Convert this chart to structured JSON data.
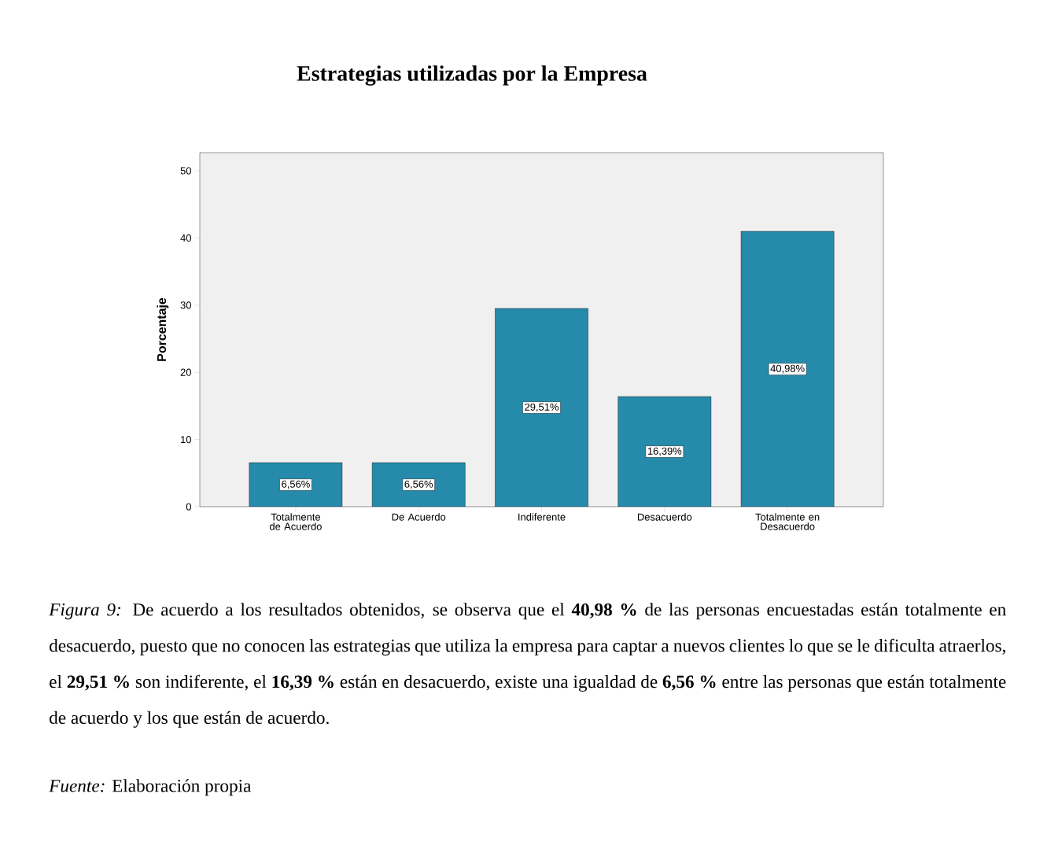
{
  "chart_data": {
    "type": "bar",
    "title": "Estrategias utilizadas por la Empresa",
    "ylabel": "Porcentaje",
    "categories": [
      "Totalmente de Acuerdo",
      "De Acuerdo",
      "Indiferente",
      "Desacuerdo",
      "Totalmente en Desacuerdo"
    ],
    "values": [
      6.56,
      6.56,
      29.51,
      16.39,
      40.98
    ],
    "value_labels": [
      "6,56%",
      "6,56%",
      "29,51%",
      "16,39%",
      "40,98%"
    ],
    "color": "#268aab",
    "ylim": [
      0,
      52.7
    ],
    "yticks": [
      0,
      10,
      20,
      30,
      40,
      50
    ],
    "annotations": [
      "*Figura 9:* De acuerdo a los resultados obtenidos, se observa que el **40,98 %** de las personas encuestadas están totalmente en desacuerdo, puesto que no conocen las estrategias que utiliza la empresa para captar a nuevos clientes lo que se le dificulta atraerlos, el **29,51 %** son indiferente, el **16,39 %** están en desacuerdo, existe una igualdad de **6,56 %** entre las personas que están totalmente de acuerdo y los que están de acuerdo.",
      "*Fuente:* Elaboración propia"
    ]
  }
}
